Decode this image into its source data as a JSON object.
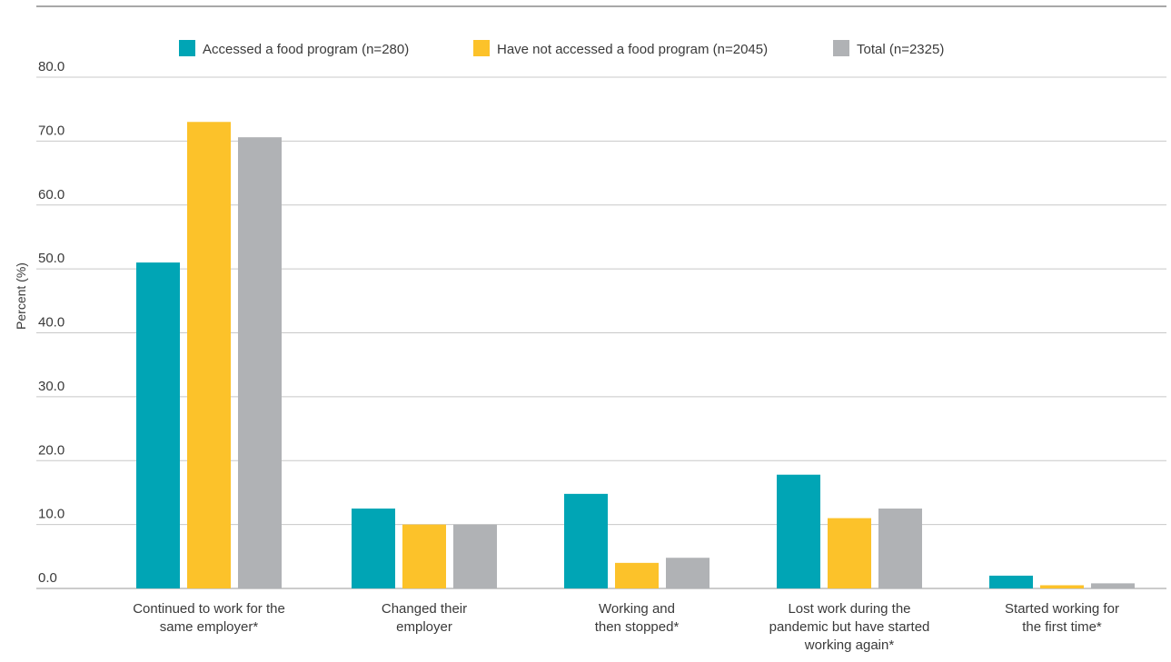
{
  "chart_data": {
    "type": "bar",
    "title": "",
    "xlabel": "",
    "ylabel": "Percent (%)",
    "ylim": [
      0,
      80
    ],
    "yticks": [
      "0.0",
      "10.0",
      "20.0",
      "30.0",
      "40.0",
      "50.0",
      "60.0",
      "70.0",
      "80.0"
    ],
    "grid": true,
    "legend_position": "top",
    "categories": [
      [
        "Continued to work for the",
        "same employer*"
      ],
      [
        "Changed their",
        "employer"
      ],
      [
        "Working and",
        "then stopped*"
      ],
      [
        "Lost work during the",
        "pandemic but have started",
        "working again*"
      ],
      [
        "Started working for",
        "the first time*"
      ]
    ],
    "series": [
      {
        "name": "Accessed a food program (n=280)",
        "color": "#00a5b5",
        "values": [
          51.0,
          12.5,
          14.8,
          17.8,
          2.0
        ]
      },
      {
        "name": "Have not accessed a food program (n=2045)",
        "color": "#fcc22a",
        "values": [
          73.0,
          10.0,
          4.0,
          11.0,
          0.5
        ]
      },
      {
        "name": "Total (n=2325)",
        "color": "#b0b2b5",
        "values": [
          70.6,
          10.0,
          4.8,
          12.5,
          0.8
        ]
      }
    ]
  }
}
